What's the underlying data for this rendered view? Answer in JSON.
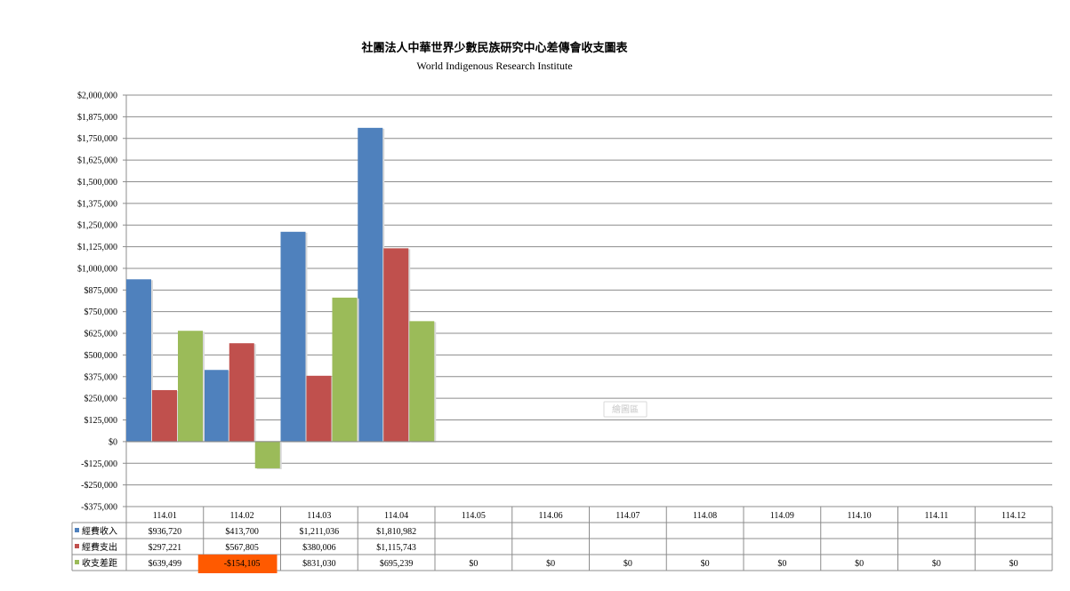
{
  "chart_data": {
    "type": "bar",
    "title": "社團法人中華世界少數民族研究中心差傳會收支圖表",
    "subtitle": "World Indigenous Research Institute",
    "categories": [
      "114.01",
      "114.02",
      "114.03",
      "114.04",
      "114.05",
      "114.06",
      "114.07",
      "114.08",
      "114.09",
      "114.10",
      "114.11",
      "114.12"
    ],
    "ylim": [
      -375000,
      2000000
    ],
    "yticks": [
      2000000,
      1875000,
      1750000,
      1625000,
      1500000,
      1375000,
      1250000,
      1125000,
      1000000,
      875000,
      750000,
      625000,
      500000,
      375000,
      250000,
      125000,
      0,
      -125000,
      -250000,
      -375000
    ],
    "ytick_labels": [
      "$2,000,000",
      "$1,875,000",
      "$1,750,000",
      "$1,625,000",
      "$1,500,000",
      "$1,375,000",
      "$1,250,000",
      "$1,125,000",
      "$1,000,000",
      "$875,000",
      "$750,000",
      "$625,000",
      "$500,000",
      "$375,000",
      "$250,000",
      "$125,000",
      "$0",
      "-$125,000",
      "-$250,000",
      "-$375,000"
    ],
    "grid": true,
    "legend": "data-table-left",
    "series": [
      {
        "name": "經費收入",
        "color": "#4f81bd",
        "values": [
          936720,
          413700,
          1211036,
          1810982,
          null,
          null,
          null,
          null,
          null,
          null,
          null,
          null
        ],
        "labels": [
          "$936,720",
          "$413,700",
          "$1,211,036",
          "$1,810,982",
          "",
          "",
          "",
          "",
          "",
          "",
          "",
          ""
        ]
      },
      {
        "name": "經費支出",
        "color": "#c0504d",
        "values": [
          297221,
          567805,
          380006,
          1115743,
          null,
          null,
          null,
          null,
          null,
          null,
          null,
          null
        ],
        "labels": [
          "$297,221",
          "$567,805",
          "$380,006",
          "$1,115,743",
          "",
          "",
          "",
          "",
          "",
          "",
          "",
          ""
        ]
      },
      {
        "name": "收支差距",
        "color": "#9bbb59",
        "values": [
          639499,
          -154105,
          831030,
          695239,
          0,
          0,
          0,
          0,
          0,
          0,
          0,
          0
        ],
        "labels": [
          "$639,499",
          "-$154,105",
          "$831,030",
          "$695,239",
          "$0",
          "$0",
          "$0",
          "$0",
          "$0",
          "$0",
          "$0",
          "$0"
        ]
      }
    ],
    "highlight": {
      "series": 2,
      "index": 1,
      "color": "#ff5a00"
    },
    "watermark": "繪圖區"
  }
}
